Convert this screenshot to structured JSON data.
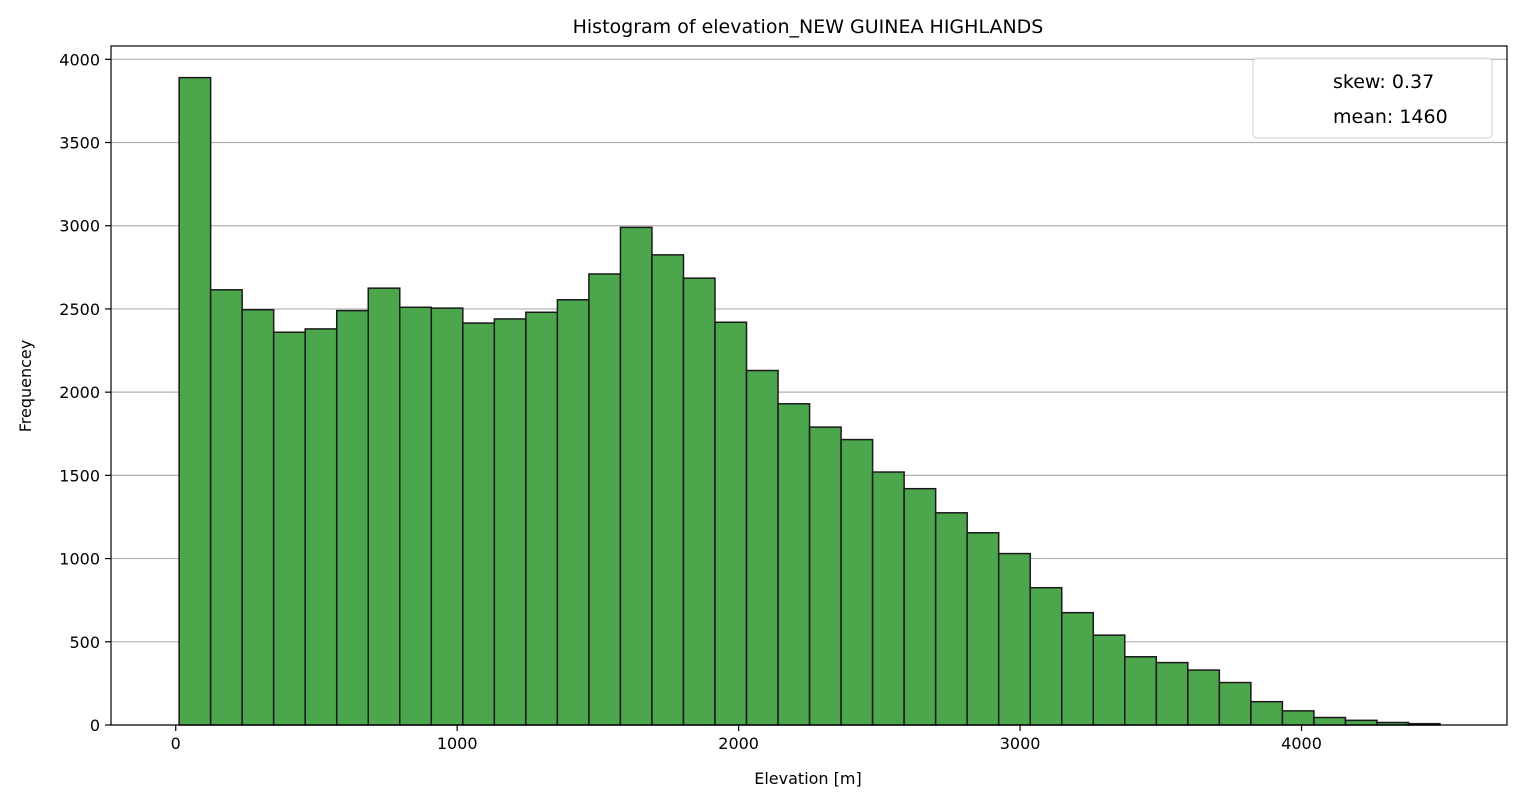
{
  "chart_data": {
    "type": "bar",
    "title": "Histogram of elevation_NEW GUINEA HIGHLANDS",
    "xlabel": "Elevation [m]",
    "ylabel": "Frequencey",
    "xlim": [
      -230,
      4730
    ],
    "ylim": [
      0,
      4080
    ],
    "x_ticks": [
      0,
      1000,
      2000,
      3000,
      4000
    ],
    "y_ticks": [
      0,
      500,
      1000,
      1500,
      2000,
      2500,
      3000,
      3500,
      4000
    ],
    "grid": "y",
    "bar_color": "#4ca64c",
    "edge_color": "#1a1a1a",
    "bin_edges": [
      12,
      124,
      236,
      348,
      460,
      572,
      684,
      796,
      908,
      1020,
      1132,
      1244,
      1356,
      1468,
      1580,
      1692,
      1804,
      1916,
      2028,
      2140,
      2252,
      2364,
      2476,
      2588,
      2700,
      2812,
      2924,
      3036,
      3148,
      3260,
      3372,
      3484,
      3596,
      3708,
      3820,
      3932,
      4044,
      4156,
      4268,
      4380,
      4492
    ],
    "values": [
      3890,
      2615,
      2495,
      2360,
      2380,
      2490,
      2625,
      2510,
      2505,
      2415,
      2440,
      2480,
      2555,
      2710,
      2990,
      2825,
      2685,
      2420,
      2130,
      1930,
      1790,
      1715,
      1520,
      1420,
      1275,
      1155,
      1030,
      825,
      675,
      540,
      410,
      375,
      330,
      255,
      140,
      85,
      45,
      28,
      15,
      8
    ],
    "legend": {
      "placement": "top-right",
      "entries": [
        "skew: 0.37",
        "mean: 1460"
      ]
    }
  }
}
